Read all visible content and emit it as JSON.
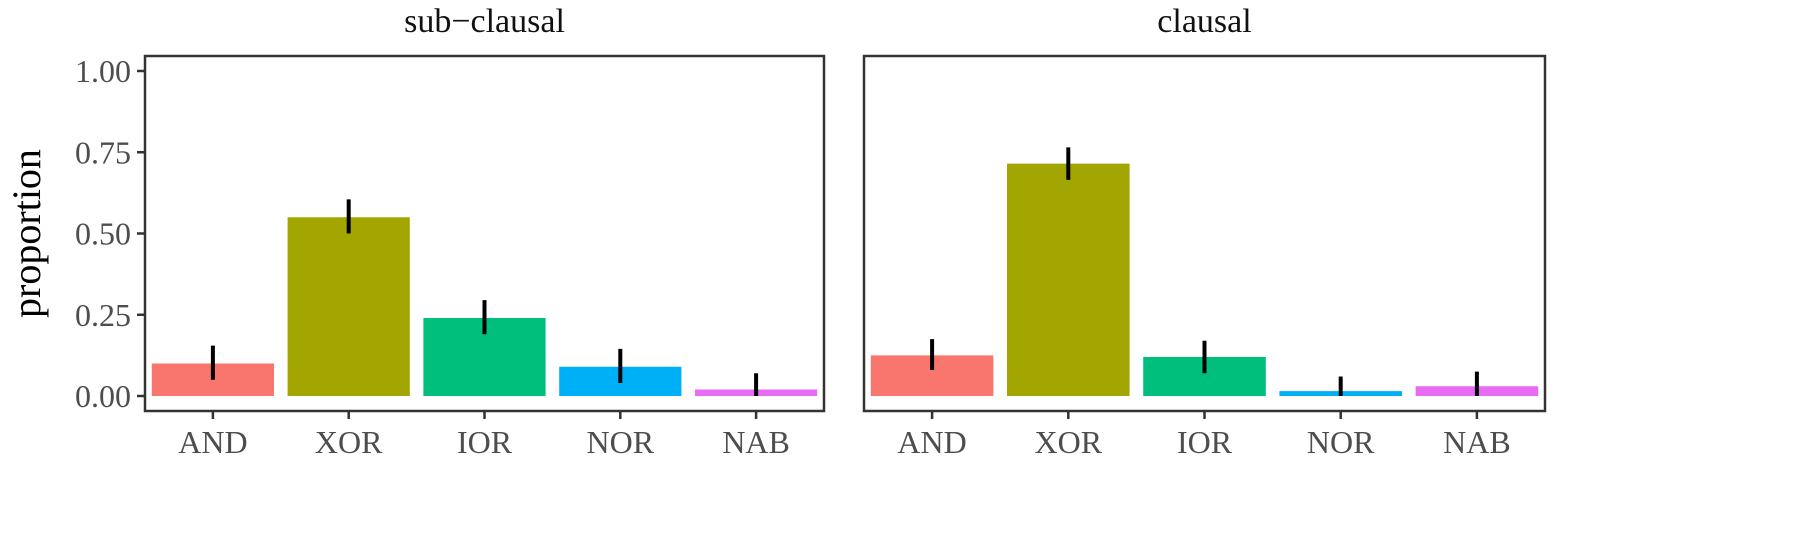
{
  "chart_data": {
    "type": "bar",
    "ylabel": "proportion",
    "xlabel": "",
    "ylim": [
      0,
      1.05
    ],
    "y_ticks": [
      0.0,
      0.25,
      0.5,
      0.75,
      1.0
    ],
    "y_tick_labels": [
      "0.00",
      "0.25",
      "0.50",
      "0.75",
      "1.00"
    ],
    "categories": [
      "AND",
      "XOR",
      "IOR",
      "NOR",
      "NAB"
    ],
    "colors": [
      "#F8766D",
      "#A3A500",
      "#00BF7D",
      "#00B0F6",
      "#E76BF3"
    ],
    "grid": false,
    "legend": "none",
    "facets": [
      {
        "title": "sub−clausal",
        "values": [
          0.1,
          0.55,
          0.24,
          0.09,
          0.02
        ],
        "error_low": [
          0.05,
          0.5,
          0.19,
          0.04,
          0.0
        ],
        "error_high": [
          0.155,
          0.605,
          0.295,
          0.145,
          0.07
        ]
      },
      {
        "title": "clausal",
        "values": [
          0.125,
          0.715,
          0.12,
          0.015,
          0.03
        ],
        "error_low": [
          0.08,
          0.665,
          0.07,
          0.0,
          0.0
        ],
        "error_high": [
          0.175,
          0.765,
          0.17,
          0.06,
          0.075
        ]
      }
    ]
  }
}
